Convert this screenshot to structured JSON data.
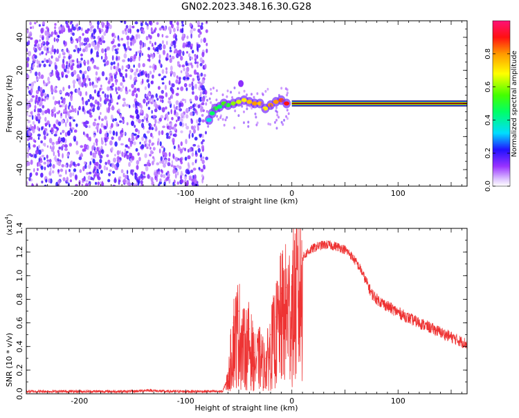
{
  "title": "GN02.2023.348.16.30.G28",
  "colorbar": {
    "label": "Normalized spectral amplitude",
    "ticks": [
      "0.0",
      "0.2",
      "0.4",
      "0.6",
      "0.8"
    ],
    "tick_values": [
      0.0,
      0.2,
      0.4,
      0.6,
      0.8
    ],
    "range": [
      0,
      1
    ]
  },
  "chart_data": [
    {
      "type": "heatmap",
      "xlabel": "Height of straight line (km)",
      "ylabel": "Frequency (Hz)",
      "xlim": [
        -250,
        165
      ],
      "ylim": [
        -50,
        50
      ],
      "xticks": [
        -200,
        -100,
        0,
        100
      ],
      "xtick_labels": [
        "-200",
        "-100",
        "0",
        "100"
      ],
      "yticks": [
        -40,
        -20,
        0,
        20,
        40
      ],
      "ytick_labels": [
        "-40",
        "-20",
        "0",
        "20",
        "40"
      ],
      "noise_region_x": [
        -250,
        -80
      ],
      "signal_line": {
        "x": [
          0,
          165
        ],
        "frequency": 0,
        "amplitude": 0.95
      },
      "transition_points": [
        {
          "x": -78,
          "f": -10,
          "a": 0.35
        },
        {
          "x": -75,
          "f": -6,
          "a": 0.45
        },
        {
          "x": -72,
          "f": -3,
          "a": 0.5
        },
        {
          "x": -68,
          "f": -2,
          "a": 0.45
        },
        {
          "x": -64,
          "f": 0,
          "a": 0.55
        },
        {
          "x": -60,
          "f": -1,
          "a": 0.5
        },
        {
          "x": -55,
          "f": 0,
          "a": 0.6
        },
        {
          "x": -50,
          "f": 1,
          "a": 0.65
        },
        {
          "x": -45,
          "f": 2,
          "a": 0.7
        },
        {
          "x": -40,
          "f": 1,
          "a": 0.75
        },
        {
          "x": -35,
          "f": 0,
          "a": 0.8
        },
        {
          "x": -30,
          "f": 0,
          "a": 0.75
        },
        {
          "x": -25,
          "f": -3,
          "a": 0.7
        },
        {
          "x": -20,
          "f": -1,
          "a": 0.8
        },
        {
          "x": -15,
          "f": 1,
          "a": 0.8
        },
        {
          "x": -10,
          "f": 2,
          "a": 0.85
        },
        {
          "x": -5,
          "f": 0,
          "a": 0.9
        }
      ]
    },
    {
      "type": "line",
      "xlabel": "Height of straight line (km)",
      "ylabel": "SNR (10 * v/v)",
      "yscale_label": "(x10",
      "yscale_exp": "4",
      "xlim": [
        -250,
        165
      ],
      "ylim": [
        0,
        1.4
      ],
      "xticks": [
        -200,
        -100,
        0,
        100
      ],
      "xtick_labels": [
        "-200",
        "-100",
        "0",
        "100"
      ],
      "yticks": [
        0,
        0.2,
        0.4,
        0.6,
        0.8,
        1.0,
        1.2,
        1.4
      ],
      "ytick_labels": [
        "0.0",
        "0.2",
        "0.4",
        "0.6",
        "0.8",
        "1.0",
        "1.2",
        "1.4"
      ],
      "series": [
        {
          "color": "#ee3333",
          "x": [
            -250,
            -230,
            -210,
            -190,
            -170,
            -150,
            -135,
            -120,
            -100,
            -80,
            -65,
            -60,
            -55,
            -50,
            -45,
            -40,
            -35,
            -30,
            -25,
            -20,
            -15,
            -10,
            -5,
            0,
            5,
            10,
            15,
            20,
            25,
            30,
            35,
            40,
            45,
            50,
            55,
            60,
            65,
            70,
            75,
            80,
            90,
            100,
            110,
            120,
            130,
            140,
            150,
            160,
            165
          ],
          "y": [
            0.02,
            0.02,
            0.02,
            0.02,
            0.02,
            0.02,
            0.03,
            0.02,
            0.02,
            0.02,
            0.02,
            0.15,
            0.6,
            0.7,
            0.5,
            0.55,
            0.35,
            0.4,
            0.3,
            0.5,
            0.65,
            0.85,
            0.9,
            0.95,
            1.05,
            1.15,
            1.2,
            1.23,
            1.25,
            1.26,
            1.26,
            1.25,
            1.24,
            1.22,
            1.18,
            1.12,
            1.05,
            0.95,
            0.85,
            0.8,
            0.74,
            0.69,
            0.64,
            0.6,
            0.56,
            0.52,
            0.48,
            0.44,
            0.42
          ]
        }
      ]
    }
  ]
}
